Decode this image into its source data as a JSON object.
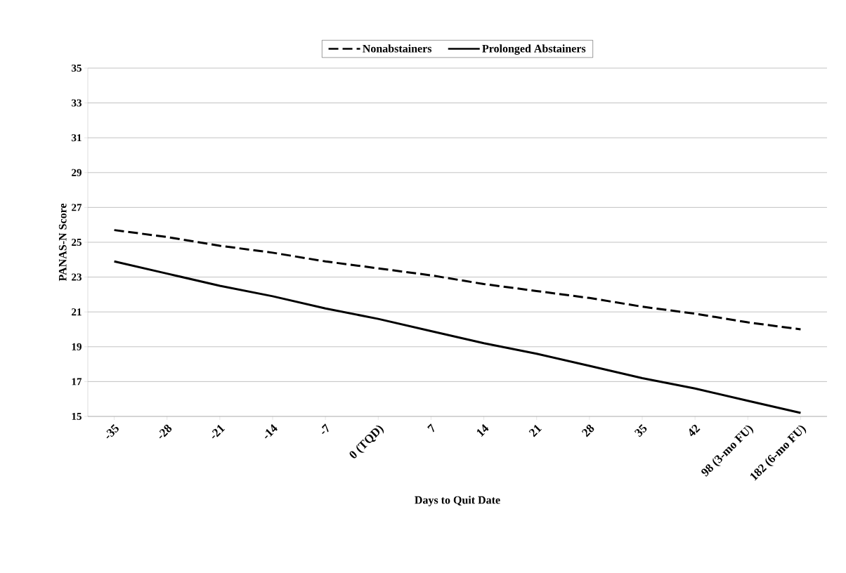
{
  "chart_data": {
    "type": "line",
    "xlabel": "Days to Quit Date",
    "ylabel": "PANAS-N Score",
    "categories": [
      "-35",
      "-28",
      "-21",
      "-14",
      "-7",
      "0 (TQD)",
      "7",
      "14",
      "21",
      "28",
      "35",
      "42",
      "98 (3-mo FU)",
      "182 (6-mo FU)"
    ],
    "series": [
      {
        "name": "Nonabstainers",
        "color": "#000000",
        "line_style": "dashed",
        "values": [
          25.7,
          25.3,
          24.8,
          24.4,
          23.9,
          23.5,
          23.1,
          22.6,
          22.2,
          21.8,
          21.3,
          20.9,
          20.4,
          20.0
        ]
      },
      {
        "name": "Prolonged Abstainers",
        "color": "#000000",
        "line_style": "solid",
        "values": [
          23.9,
          23.2,
          22.5,
          21.9,
          21.2,
          20.6,
          19.9,
          19.2,
          18.6,
          17.9,
          17.2,
          16.6,
          15.9,
          15.2
        ]
      }
    ],
    "ylim": [
      15,
      35
    ],
    "yticks": [
      15,
      17,
      19,
      21,
      23,
      25,
      27,
      29,
      31,
      33,
      35
    ],
    "grid": "y",
    "legend": "top",
    "marker": "none"
  }
}
